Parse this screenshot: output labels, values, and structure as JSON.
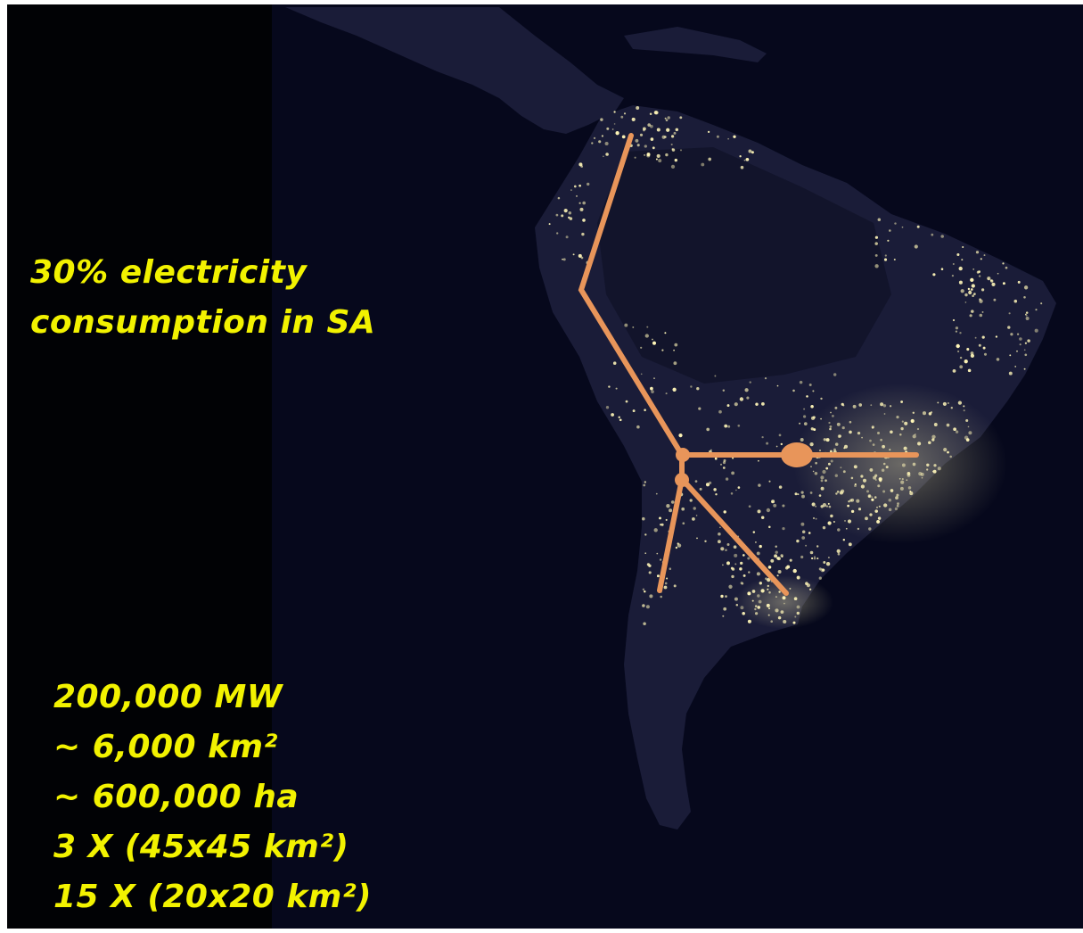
{
  "colors": {
    "background": "#010205",
    "land": "#1a1c38",
    "land_dark": "#12142b",
    "city_lights": "#fff6b8",
    "route": "#e8955a",
    "text": "#f2f200"
  },
  "headline": {
    "line1": "30% electricity",
    "line2": "consumption in SA"
  },
  "stats": [
    "200,000 MW",
    "~ 6,000 km²",
    "~ 600,000 ha",
    "3 X (45x45 km²)",
    "15 X (20x20 km²)"
  ]
}
